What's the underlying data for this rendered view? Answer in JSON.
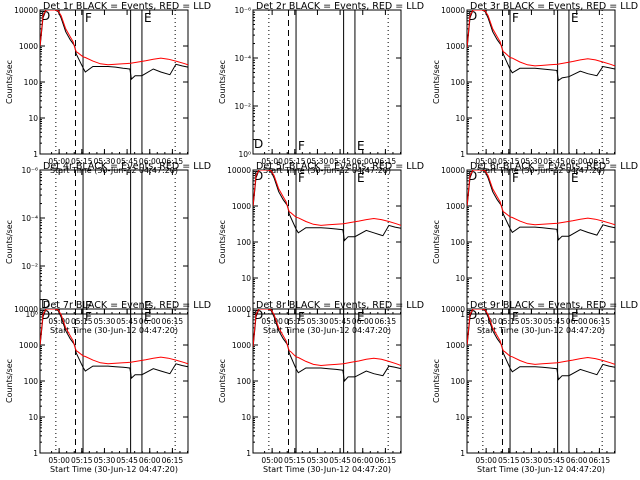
{
  "colors": {
    "events": "#000000",
    "lld": "#ff0000",
    "background": "#ffffff"
  },
  "chart_data": {
    "type": "line",
    "layout": "3x3 grid",
    "ylabel": "Counts/sec",
    "xlabel": "Start Time (30-Jun-12 04:47:20)",
    "x_ticks": [
      "05:00",
      "05:15",
      "05:30",
      "05:45",
      "06:00",
      "06:15"
    ],
    "x_tick_minutes": [
      12.67,
      27.67,
      42.67,
      57.67,
      72.67,
      87.67
    ],
    "xlim_minutes": [
      0,
      98
    ],
    "y_ticks_linear": [
      "1",
      "10",
      "100",
      "1000",
      "10000"
    ],
    "ylim_linear": [
      1,
      10000
    ],
    "y_ticks_empty": [
      "10⁰",
      "10⁻²",
      "10⁻⁴",
      "10⁻⁶"
    ],
    "ylim_empty_exponent": [
      0,
      -6
    ],
    "y_log": true,
    "series_legend": "BLACK = Events, RED = LLD",
    "vertical_markers": [
      {
        "label": "",
        "minute": 10.5,
        "style": "dotted"
      },
      {
        "label": "",
        "minute": 23.5,
        "style": "dashed"
      },
      {
        "label": "F",
        "minute": 28.5,
        "style": "solid"
      },
      {
        "label": "",
        "minute": 60.0,
        "style": "solid"
      },
      {
        "label": "E",
        "minute": 67.5,
        "style": "solid"
      },
      {
        "label": "",
        "minute": 89.5,
        "style": "dotted"
      }
    ],
    "corner_label": "D",
    "panels": [
      {
        "title": "Det 1r BLACK = Events, RED = LLD",
        "has_data": true,
        "events": {
          "x": [
            0,
            2,
            4,
            6,
            7,
            8,
            10,
            12,
            14,
            17,
            20,
            23,
            24,
            28.5,
            30,
            35,
            40,
            45,
            50,
            55,
            59.5,
            60.5,
            63,
            67.5,
            75,
            80,
            86,
            90,
            94,
            98
          ],
          "y": [
            900,
            6000,
            10000,
            10000,
            10000,
            10000,
            10000,
            9000,
            6000,
            2500,
            1500,
            1000,
            600,
            250,
            190,
            270,
            270,
            270,
            260,
            240,
            230,
            120,
            150,
            150,
            230,
            190,
            160,
            310,
            280,
            260
          ]
        },
        "lld": {
          "x": [
            0,
            2,
            4,
            6,
            7,
            8,
            10,
            12,
            14,
            17,
            20,
            22,
            23,
            24,
            25,
            28.5,
            30,
            35,
            40,
            45,
            50,
            55,
            60,
            65,
            70,
            75,
            80,
            85,
            90,
            95,
            98
          ],
          "y": [
            1000,
            7000,
            10000,
            10000,
            10000,
            10000,
            10000,
            9500,
            7000,
            3000,
            1800,
            1300,
            900,
            700,
            650,
            500,
            480,
            380,
            320,
            300,
            310,
            320,
            330,
            360,
            390,
            430,
            460,
            430,
            380,
            330,
            300
          ]
        }
      },
      {
        "title": "Det 2r BLACK = Events, RED = LLD",
        "has_data": false
      },
      {
        "title": "Det 3r BLACK = Events, RED = LLD",
        "has_data": true,
        "events": {
          "x": [
            0,
            2,
            4,
            6,
            7,
            8,
            10,
            12,
            14,
            17,
            20,
            23,
            24,
            28.5,
            30,
            35,
            40,
            45,
            50,
            55,
            59.5,
            60.5,
            63,
            67.5,
            75,
            80,
            86,
            90,
            94,
            98
          ],
          "y": [
            800,
            6000,
            10000,
            10000,
            10000,
            10000,
            10000,
            9000,
            6000,
            2500,
            1500,
            1000,
            600,
            230,
            180,
            240,
            240,
            240,
            230,
            220,
            210,
            110,
            130,
            140,
            200,
            170,
            150,
            270,
            250,
            230
          ]
        },
        "lld": {
          "x": [
            0,
            2,
            4,
            6,
            7,
            8,
            10,
            12,
            14,
            17,
            20,
            22,
            23,
            24,
            25,
            28.5,
            30,
            35,
            40,
            45,
            50,
            55,
            60,
            65,
            70,
            75,
            80,
            85,
            90,
            95,
            98
          ],
          "y": [
            900,
            7000,
            10000,
            10000,
            10000,
            10000,
            10000,
            9500,
            7000,
            3000,
            1800,
            1300,
            900,
            700,
            650,
            480,
            460,
            360,
            300,
            280,
            290,
            300,
            310,
            340,
            370,
            410,
            440,
            410,
            360,
            310,
            280
          ]
        }
      },
      {
        "title": "Det 4r BLACK = Events, RED = LLD",
        "has_data": false
      },
      {
        "title": "Det 5r BLACK = Events, RED = LLD",
        "has_data": true,
        "events": {
          "x": [
            0,
            2,
            4,
            6,
            7,
            8,
            10,
            12,
            14,
            17,
            20,
            23,
            24,
            28.5,
            30,
            35,
            40,
            45,
            50,
            55,
            59.5,
            60.5,
            63,
            67.5,
            75,
            80,
            86,
            90,
            94,
            98
          ],
          "y": [
            900,
            6000,
            10000,
            10000,
            10000,
            10000,
            10000,
            9000,
            6000,
            2500,
            1500,
            1000,
            600,
            230,
            180,
            250,
            250,
            250,
            240,
            230,
            220,
            110,
            140,
            140,
            210,
            180,
            150,
            290,
            260,
            240
          ]
        },
        "lld": {
          "x": [
            0,
            2,
            4,
            6,
            7,
            8,
            10,
            12,
            14,
            17,
            20,
            22,
            23,
            24,
            25,
            28.5,
            30,
            35,
            40,
            45,
            50,
            55,
            60,
            65,
            70,
            75,
            80,
            85,
            90,
            95,
            98
          ],
          "y": [
            1000,
            7000,
            10000,
            10000,
            10000,
            10000,
            10000,
            9500,
            7000,
            3000,
            1800,
            1300,
            900,
            700,
            650,
            490,
            470,
            370,
            310,
            290,
            300,
            310,
            320,
            350,
            380,
            420,
            450,
            420,
            370,
            320,
            290
          ]
        }
      },
      {
        "title": "Det 6r BLACK = Events, RED = LLD",
        "has_data": true,
        "events": {
          "x": [
            0,
            2,
            4,
            6,
            7,
            8,
            10,
            12,
            14,
            17,
            20,
            23,
            24,
            28.5,
            30,
            35,
            40,
            45,
            50,
            55,
            59.5,
            60.5,
            63,
            67.5,
            75,
            80,
            86,
            90,
            94,
            98
          ],
          "y": [
            900,
            6000,
            10000,
            10000,
            10000,
            10000,
            10000,
            9000,
            6000,
            2500,
            1500,
            1000,
            600,
            240,
            185,
            260,
            260,
            260,
            250,
            235,
            225,
            115,
            145,
            145,
            220,
            185,
            155,
            300,
            270,
            250
          ]
        },
        "lld": {
          "x": [
            0,
            2,
            4,
            6,
            7,
            8,
            10,
            12,
            14,
            17,
            20,
            22,
            23,
            24,
            25,
            28.5,
            30,
            35,
            40,
            45,
            50,
            55,
            60,
            65,
            70,
            75,
            80,
            85,
            90,
            95,
            98
          ],
          "y": [
            1000,
            7000,
            10000,
            10000,
            10000,
            10000,
            10000,
            9500,
            7000,
            3000,
            1800,
            1300,
            900,
            700,
            650,
            500,
            480,
            380,
            320,
            300,
            310,
            320,
            330,
            360,
            390,
            430,
            460,
            430,
            380,
            330,
            300
          ]
        }
      },
      {
        "title": "Det 7r BLACK = Events, RED = LLD",
        "has_data": true,
        "events": {
          "x": [
            0,
            2,
            4,
            6,
            7,
            8,
            10,
            12,
            14,
            17,
            20,
            23,
            24,
            28.5,
            30,
            35,
            40,
            45,
            50,
            55,
            59.5,
            60.5,
            63,
            67.5,
            75,
            80,
            86,
            90,
            94,
            98
          ],
          "y": [
            900,
            6000,
            10000,
            10000,
            10000,
            10000,
            10000,
            9000,
            6000,
            2500,
            1500,
            1000,
            600,
            240,
            190,
            260,
            260,
            260,
            250,
            240,
            230,
            120,
            150,
            150,
            220,
            190,
            160,
            300,
            270,
            250
          ]
        },
        "lld": {
          "x": [
            0,
            2,
            4,
            6,
            7,
            8,
            10,
            12,
            14,
            17,
            20,
            22,
            23,
            24,
            25,
            28.5,
            30,
            35,
            40,
            45,
            50,
            55,
            60,
            65,
            70,
            75,
            80,
            85,
            90,
            95,
            98
          ],
          "y": [
            1000,
            7000,
            10000,
            10000,
            10000,
            10000,
            10000,
            9500,
            7000,
            3000,
            1800,
            1300,
            900,
            700,
            650,
            500,
            480,
            380,
            320,
            300,
            310,
            320,
            330,
            360,
            390,
            430,
            460,
            430,
            380,
            330,
            300
          ]
        }
      },
      {
        "title": "Det 8r BLACK = Events, RED = LLD",
        "has_data": true,
        "events": {
          "x": [
            0,
            2,
            4,
            6,
            7,
            8,
            10,
            12,
            14,
            17,
            20,
            23,
            24,
            28.5,
            30,
            35,
            40,
            45,
            50,
            55,
            59.5,
            60.5,
            63,
            67.5,
            75,
            80,
            86,
            90,
            94,
            98
          ],
          "y": [
            800,
            6000,
            10000,
            10000,
            10000,
            10000,
            10000,
            9000,
            6000,
            2500,
            1500,
            1000,
            600,
            220,
            170,
            230,
            230,
            230,
            220,
            210,
            200,
            100,
            130,
            130,
            190,
            160,
            140,
            260,
            240,
            220
          ]
        },
        "lld": {
          "x": [
            0,
            2,
            4,
            6,
            7,
            8,
            10,
            12,
            14,
            17,
            20,
            22,
            23,
            24,
            25,
            28.5,
            30,
            35,
            40,
            45,
            50,
            55,
            60,
            65,
            70,
            75,
            80,
            85,
            90,
            95,
            98
          ],
          "y": [
            900,
            7000,
            10000,
            10000,
            10000,
            10000,
            10000,
            9500,
            7000,
            3000,
            1800,
            1300,
            900,
            700,
            650,
            470,
            450,
            350,
            290,
            270,
            280,
            290,
            300,
            330,
            360,
            400,
            430,
            400,
            350,
            300,
            270
          ]
        }
      },
      {
        "title": "Det 9r BLACK = Events, RED = LLD",
        "has_data": true,
        "events": {
          "x": [
            0,
            2,
            4,
            6,
            7,
            8,
            10,
            12,
            14,
            17,
            20,
            23,
            24,
            28.5,
            30,
            35,
            40,
            45,
            50,
            55,
            59.5,
            60.5,
            63,
            67.5,
            75,
            80,
            86,
            90,
            94,
            98
          ],
          "y": [
            900,
            6000,
            10000,
            10000,
            10000,
            10000,
            10000,
            9000,
            6000,
            2500,
            1500,
            1000,
            600,
            230,
            180,
            250,
            250,
            250,
            240,
            230,
            220,
            110,
            140,
            140,
            210,
            180,
            150,
            290,
            260,
            240
          ]
        },
        "lld": {
          "x": [
            0,
            2,
            4,
            6,
            7,
            8,
            10,
            12,
            14,
            17,
            20,
            22,
            23,
            24,
            25,
            28.5,
            30,
            35,
            40,
            45,
            50,
            55,
            60,
            65,
            70,
            75,
            80,
            85,
            90,
            95,
            98
          ],
          "y": [
            1000,
            7000,
            10000,
            10000,
            10000,
            10000,
            10000,
            9500,
            7000,
            3000,
            1800,
            1300,
            900,
            700,
            650,
            490,
            470,
            370,
            310,
            290,
            300,
            310,
            320,
            350,
            380,
            420,
            450,
            420,
            370,
            320,
            290
          ]
        }
      }
    ]
  }
}
